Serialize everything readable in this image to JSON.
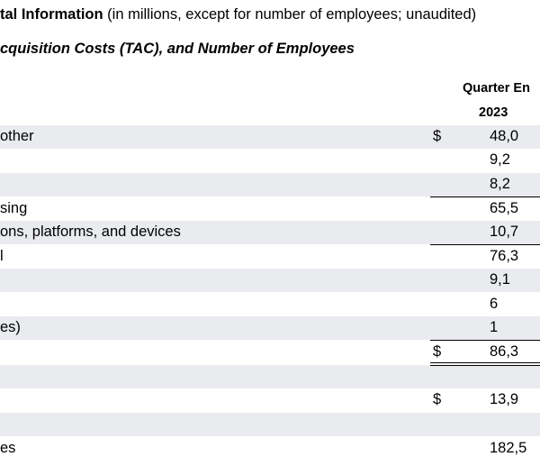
{
  "header": {
    "title_bold": "tal Information",
    "title_rest": " (in millions, except for number of employees; unaudited)",
    "subtitle": "cquisition Costs (TAC), and Number of Employees"
  },
  "columns": {
    "quarter": "Quarter En",
    "year": "2023"
  },
  "rows": [
    {
      "label": "other",
      "dollar": "$",
      "value": "48,0"
    },
    {
      "label": "",
      "dollar": "",
      "value": "9,2"
    },
    {
      "label": "",
      "dollar": "",
      "value": "8,2"
    },
    {
      "label": "sing",
      "dollar": "",
      "value": "65,5"
    },
    {
      "label": "ons, platforms, and devices",
      "dollar": "",
      "value": "10,7"
    },
    {
      "label": "l",
      "dollar": "",
      "value": "76,3"
    },
    {
      "label": "",
      "dollar": "",
      "value": "9,1"
    },
    {
      "label": "",
      "dollar": "",
      "value": "6"
    },
    {
      "label": "es)",
      "dollar": "",
      "value": "1"
    },
    {
      "label": "",
      "dollar": "$",
      "value": "86,3"
    },
    {
      "label": "",
      "dollar": "",
      "value": ""
    },
    {
      "label": "",
      "dollar": "$",
      "value": "13,9"
    },
    {
      "label": "",
      "dollar": "",
      "value": ""
    },
    {
      "label": "es",
      "dollar": "",
      "value": "182,5"
    }
  ]
}
